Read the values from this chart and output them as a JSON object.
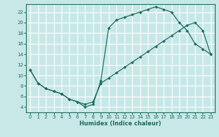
{
  "xlabel": "Humidex (Indice chaleur)",
  "bg_color": "#c8e8e8",
  "grid_color": "#ffffff",
  "line_color": "#1a6b5a",
  "xlim": [
    -0.5,
    23.5
  ],
  "ylim": [
    3,
    23.5
  ],
  "xticks": [
    0,
    1,
    2,
    3,
    4,
    5,
    6,
    7,
    8,
    9,
    10,
    11,
    12,
    13,
    14,
    15,
    16,
    17,
    18,
    19,
    20,
    21,
    22,
    23
  ],
  "yticks": [
    4,
    6,
    8,
    10,
    12,
    14,
    16,
    18,
    20,
    22
  ],
  "path1_x": [
    0,
    1,
    2,
    3,
    4,
    5,
    6,
    7,
    8,
    9,
    10,
    11,
    12,
    13,
    14,
    15,
    16,
    17,
    18,
    19,
    20,
    21,
    22,
    23
  ],
  "path1_y": [
    11,
    8.5,
    7.5,
    7,
    6.5,
    5.5,
    5,
    4,
    4.5,
    9,
    19,
    20.5,
    21,
    21.5,
    22,
    22.5,
    23,
    22.5,
    22,
    20,
    18.5,
    16,
    15,
    14
  ],
  "path2_x": [
    0,
    1,
    2,
    3,
    4,
    5,
    6,
    7,
    8,
    9,
    10,
    11,
    12,
    13,
    14,
    15,
    16,
    17,
    18,
    19,
    20,
    21,
    22,
    23
  ],
  "path2_y": [
    11,
    8.5,
    7.5,
    7,
    6.5,
    5.5,
    5,
    4.5,
    5,
    8.5,
    9.5,
    10.5,
    11.5,
    12.5,
    13.5,
    14.5,
    15.5,
    16.5,
    17.5,
    18.5,
    19.5,
    20,
    18.5,
    14
  ]
}
